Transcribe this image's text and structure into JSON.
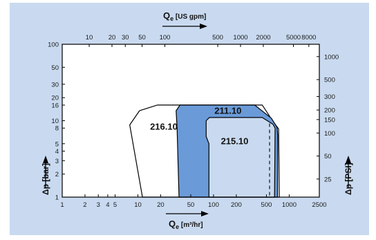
{
  "chart_data": {
    "type": "area",
    "colors": {
      "background": "#c9daf0",
      "plot_background": "#ffffff",
      "region_fill": "#6a9ad8",
      "region_light_fill": "#c9daf0",
      "line": "#000000"
    },
    "axes": {
      "bottom": {
        "label_main": "Q",
        "label_sub": "e",
        "label_unit": " [m³/hr]",
        "scale": "log",
        "range": [
          1,
          2500
        ],
        "ticks": [
          {
            "value": 1,
            "label": "1"
          },
          {
            "value": 2,
            "label": "2"
          },
          {
            "value": 3,
            "label": "3"
          },
          {
            "value": 4,
            "label": "4"
          },
          {
            "value": 5,
            "label": "5"
          },
          {
            "value": 10,
            "label": "10"
          },
          {
            "value": 20,
            "label": "20"
          },
          {
            "value": 50,
            "label": "50"
          },
          {
            "value": 100,
            "label": "100"
          },
          {
            "value": 200,
            "label": "200"
          },
          {
            "value": 500,
            "label": "500"
          },
          {
            "value": 1000,
            "label": "1000"
          },
          {
            "value": 2500,
            "label": "2500"
          }
        ]
      },
      "top": {
        "label_main": "Q",
        "label_sub": "e",
        "label_unit": " [US gpm]",
        "scale": "log",
        "range": [
          4.4,
          11000
        ],
        "ticks": [
          {
            "value": 10,
            "label": "10"
          },
          {
            "value": 20,
            "label": "20"
          },
          {
            "value": 30,
            "label": "30"
          },
          {
            "value": 50,
            "label": "50"
          },
          {
            "value": 100,
            "label": "100"
          },
          {
            "value": 500,
            "label": "500"
          },
          {
            "value": 1000,
            "label": "1000"
          },
          {
            "value": 2000,
            "label": "2000"
          },
          {
            "value": 5000,
            "label": "5000"
          },
          {
            "value": 8000,
            "label": "8000"
          }
        ]
      },
      "left": {
        "label": "Δp [bar]",
        "scale": "log",
        "range": [
          1,
          100
        ],
        "ticks": [
          {
            "value": 1,
            "label": "1"
          },
          {
            "value": 2,
            "label": "2"
          },
          {
            "value": 3,
            "label": "3"
          },
          {
            "value": 4,
            "label": "4"
          },
          {
            "value": 5,
            "label": "5"
          },
          {
            "value": 8,
            "label": "8"
          },
          {
            "value": 10,
            "label": "10"
          },
          {
            "value": 16,
            "label": "16"
          },
          {
            "value": 20,
            "label": "20"
          },
          {
            "value": 30,
            "label": "30"
          },
          {
            "value": 50,
            "label": "50"
          },
          {
            "value": 100,
            "label": "100"
          }
        ]
      },
      "right": {
        "label": "Δp [PSI]",
        "scale": "log",
        "range": [
          14.5,
          1450
        ],
        "ticks": [
          {
            "value": 25,
            "label": "25"
          },
          {
            "value": 50,
            "label": "50"
          },
          {
            "value": 100,
            "label": "100"
          },
          {
            "value": 150,
            "label": "150"
          },
          {
            "value": 200,
            "label": "200"
          },
          {
            "value": 300,
            "label": "300"
          },
          {
            "value": 500,
            "label": "500"
          },
          {
            "value": 1000,
            "label": "1000"
          }
        ]
      }
    },
    "regions": [
      {
        "name": "216.10",
        "fill": "white",
        "label_at": [
          22,
          7.6
        ],
        "polygon": [
          [
            11.5,
            1
          ],
          [
            7.8,
            8.8
          ],
          [
            10.5,
            13.5
          ],
          [
            18,
            16
          ],
          [
            440,
            16
          ],
          [
            520,
            12.5
          ],
          [
            600,
            10
          ],
          [
            725,
            7.8
          ],
          [
            740,
            1
          ]
        ]
      },
      {
        "name": "211.10",
        "fill": "dark",
        "label_at": [
          155,
          12.3
        ],
        "polygon": [
          [
            35,
            1
          ],
          [
            33,
            8
          ],
          [
            32,
            13.5
          ],
          [
            36,
            16
          ],
          [
            350,
            16
          ],
          [
            580,
            10.8
          ],
          [
            690,
            8.2
          ],
          [
            705,
            6.5
          ],
          [
            700,
            1
          ]
        ]
      },
      {
        "name": "215.10",
        "fill": "light",
        "label_at": [
          190,
          4.9
        ],
        "polygon": [
          [
            87,
            1
          ],
          [
            87,
            5
          ],
          [
            80,
            6.2
          ],
          [
            80,
            10
          ],
          [
            88,
            11
          ],
          [
            440,
            11
          ],
          [
            610,
            9
          ],
          [
            650,
            8
          ],
          [
            640,
            1
          ]
        ]
      }
    ],
    "dashed_line_x": 550
  }
}
